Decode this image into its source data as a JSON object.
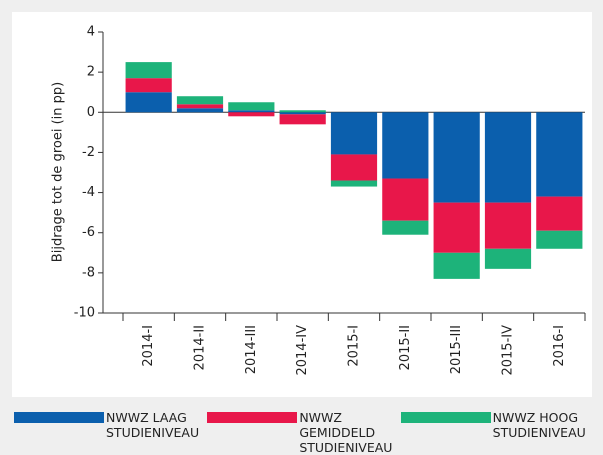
{
  "chart_data": {
    "type": "stacked-bar",
    "y_label": "Bijdrage tot de groei (in pp)",
    "categories": [
      "2014-I",
      "2014-II",
      "2014-III",
      "2014-IV",
      "2015-I",
      "2015-II",
      "2015-III",
      "2015-IV",
      "2016-I"
    ],
    "series": [
      {
        "name": "NWWZ LAAG STUDIENIVEAU",
        "color": "#0b5fad",
        "values": [
          1.0,
          0.2,
          0.1,
          -0.1,
          -2.1,
          -3.3,
          -4.5,
          -4.5,
          -4.2
        ]
      },
      {
        "name": "NWWZ GEMIDDELD STUDIENIVEAU",
        "color": "#e8174a",
        "values": [
          0.7,
          0.2,
          -0.2,
          -0.5,
          -1.3,
          -2.1,
          -2.5,
          -2.3,
          -1.7
        ]
      },
      {
        "name": "NWWZ HOOG STUDIENIVEAU",
        "color": "#1db37a",
        "values": [
          0.8,
          0.4,
          0.4,
          0.1,
          -0.3,
          -0.7,
          -1.3,
          -1.0,
          -0.9
        ]
      }
    ],
    "ylim": [
      -10,
      4
    ],
    "yticks": [
      -10,
      -8,
      -6,
      -4,
      -2,
      0,
      2,
      4
    ]
  }
}
